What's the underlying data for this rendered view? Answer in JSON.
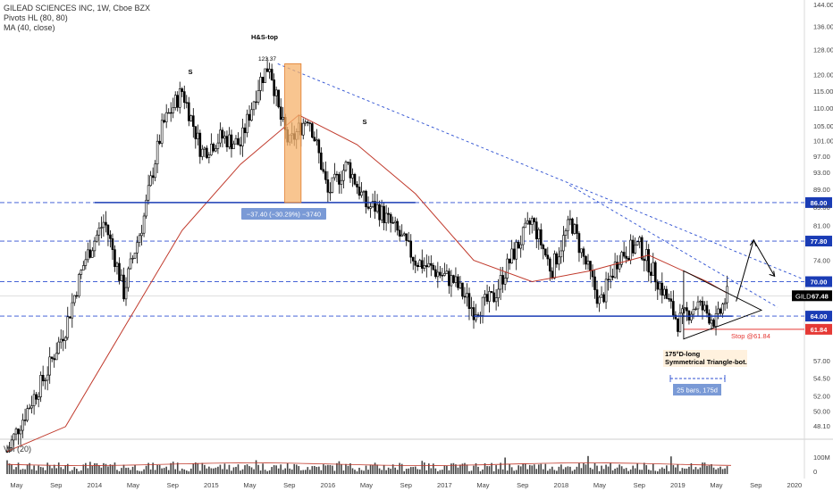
{
  "header": {
    "title": "GILEAD SCIENCES INC, 1W, Cboe BZX",
    "indicator1": "Pivots HL (80, 80)",
    "indicator2": "MA (40, close)"
  },
  "volume_pane": {
    "label": "Vol (20)",
    "tick_100m": "100M",
    "tick_0": "0"
  },
  "colors": {
    "candle": "#000000",
    "ma": "#c0392b",
    "support_line": "#1a3cb5",
    "dashed_level": "#2c4fd1",
    "stop_line": "#e53935",
    "hs_highlight": "#f5b26b",
    "label_box": "#7a9ad6"
  },
  "chart_data": {
    "type": "candlestick",
    "title": "GILEAD SCIENCES INC, 1W, Cboe BZX",
    "xlabel": "",
    "ylabel": "",
    "ylim": [
      47,
      144
    ],
    "y_ticks": [
      144,
      136,
      128,
      120,
      115,
      110,
      105,
      101,
      97,
      93,
      89,
      85,
      81,
      77.8,
      74,
      70,
      64,
      61.84,
      57,
      54.5,
      52,
      50,
      48.1
    ],
    "x_ticks": [
      "May",
      "Sep",
      "2014",
      "May",
      "Sep",
      "2015",
      "May",
      "Sep",
      "2016",
      "May",
      "Sep",
      "2017",
      "May",
      "Sep",
      "2018",
      "May",
      "Sep",
      "2019",
      "May",
      "Sep",
      "2020"
    ],
    "price_path": [
      [
        "2013-04",
        45
      ],
      [
        "2013-06",
        50
      ],
      [
        "2013-08",
        55
      ],
      [
        "2013-10",
        62
      ],
      [
        "2013-12",
        74
      ],
      [
        "2014-02",
        82
      ],
      [
        "2014-04",
        68
      ],
      [
        "2014-06",
        82
      ],
      [
        "2014-08",
        105
      ],
      [
        "2014-10",
        115
      ],
      [
        "2014-12",
        98
      ],
      [
        "2015-02",
        102
      ],
      [
        "2015-04",
        100
      ],
      [
        "2015-06",
        118
      ],
      [
        "2015-07",
        123.37
      ],
      [
        "2015-08",
        108
      ],
      [
        "2015-09",
        100
      ],
      [
        "2015-11",
        108
      ],
      [
        "2016-01",
        88
      ],
      [
        "2016-03",
        95
      ],
      [
        "2016-05",
        85
      ],
      [
        "2016-06",
        85
      ],
      [
        "2016-08",
        80
      ],
      [
        "2016-10",
        74
      ],
      [
        "2016-12",
        72
      ],
      [
        "2017-02",
        70
      ],
      [
        "2017-04",
        65
      ],
      [
        "2017-06",
        67
      ],
      [
        "2017-08",
        75
      ],
      [
        "2017-10",
        82
      ],
      [
        "2017-12",
        72
      ],
      [
        "2018-02",
        82
      ],
      [
        "2018-03",
        76
      ],
      [
        "2018-05",
        66
      ],
      [
        "2018-07",
        75
      ],
      [
        "2018-09",
        77
      ],
      [
        "2018-11",
        70
      ],
      [
        "2019-01",
        63
      ],
      [
        "2019-03",
        66
      ],
      [
        "2019-05",
        63
      ],
      [
        "2019-06",
        67.48
      ]
    ],
    "series": [
      {
        "name": "MA (40, close)",
        "values_path": [
          [
            "2013-04",
            45
          ],
          [
            "2013-10",
            48
          ],
          [
            "2014-04",
            62
          ],
          [
            "2014-10",
            80
          ],
          [
            "2015-04",
            95
          ],
          [
            "2015-10",
            108
          ],
          [
            "2016-04",
            100
          ],
          [
            "2016-10",
            88
          ],
          [
            "2017-04",
            74
          ],
          [
            "2017-10",
            70
          ],
          [
            "2018-04",
            72
          ],
          [
            "2018-10",
            75
          ],
          [
            "2019-04",
            70
          ],
          [
            "2019-06",
            68
          ]
        ]
      }
    ],
    "levels": [
      {
        "price": 86.0,
        "label": "86.00"
      },
      {
        "price": 77.8,
        "label": "77.80"
      },
      {
        "price": 70.0,
        "label": "70.00"
      },
      {
        "price": 64.0,
        "label": "64.00"
      },
      {
        "price": 61.84,
        "label": "61.84"
      }
    ],
    "last_price": {
      "symbol": "GILD",
      "value": "67.48"
    },
    "annotations": {
      "hs_top": "H&S-top",
      "shoulder_left": "S",
      "shoulder_right": "S",
      "peak": "123.37",
      "decline_box": "−37.40 (−30.29%) −3740",
      "stop": "Stop @61.84",
      "triangle_line1": "175°D-long",
      "triangle_line2": "Symmetrical Triangle-bot.",
      "bars_range": "25 bars, 175d"
    }
  }
}
